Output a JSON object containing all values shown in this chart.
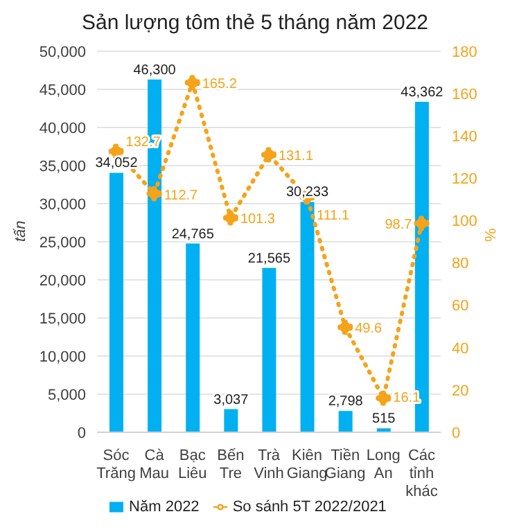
{
  "chart_data": {
    "type": "bar",
    "title": "Sản lượng tôm thẻ 5 tháng năm 2022",
    "categories": [
      "Sóc\nTrăng",
      "Cà\nMau",
      "Bạc\nLiêu",
      "Bến\nTre",
      "Trà\nVinh",
      "Kiên\nGiang",
      "Tiền\nGiang",
      "Long\nAn",
      "Các\ntỉnh\nkhác"
    ],
    "series": [
      {
        "name": "Năm 2022",
        "type": "bar",
        "color": "#00b0f0",
        "values": [
          34052,
          46300,
          24765,
          3037,
          21565,
          30233,
          2798,
          515,
          43362
        ],
        "value_labels": [
          "34,052",
          "46,300",
          "24,765",
          "3,037",
          "21,565",
          "30,233",
          "2,798",
          "515",
          "43,362"
        ]
      },
      {
        "name": "So sánh 5T 2022/2021",
        "type": "line",
        "axis": "y2",
        "color": "#f5a31a",
        "marker": "circle",
        "line_style": "dotted",
        "values": [
          132.7,
          112.7,
          165.2,
          101.3,
          131.1,
          111.1,
          49.6,
          16.1,
          98.7
        ],
        "value_labels": [
          "132.7",
          "112.7",
          "165.2",
          "101.3",
          "131.1",
          "111.1",
          "49.6",
          "16.1",
          "98.7"
        ]
      }
    ],
    "ylabel": "tấn",
    "y2label": "%",
    "ylim": [
      0,
      50000
    ],
    "yticks": [
      0,
      {
        "value": 5000,
        "label": "5,000"
      },
      {
        "value": 10000,
        "label": "10,000"
      },
      {
        "value": 15000,
        "label": "15,000"
      },
      {
        "value": 20000,
        "label": "20,000"
      },
      {
        "value": 25000,
        "label": "25,000"
      },
      {
        "value": 30000,
        "label": "30,000"
      },
      {
        "value": 35000,
        "label": "35,000"
      },
      {
        "value": 40000,
        "label": "40,000"
      },
      {
        "value": 45000,
        "label": "45,000"
      },
      {
        "value": 50000,
        "label": "50,000"
      }
    ],
    "y2lim": [
      0,
      180
    ],
    "y2ticks": [
      0,
      20,
      40,
      60,
      80,
      100,
      120,
      140,
      160,
      180
    ],
    "grid": "y",
    "legend": "bottom"
  }
}
